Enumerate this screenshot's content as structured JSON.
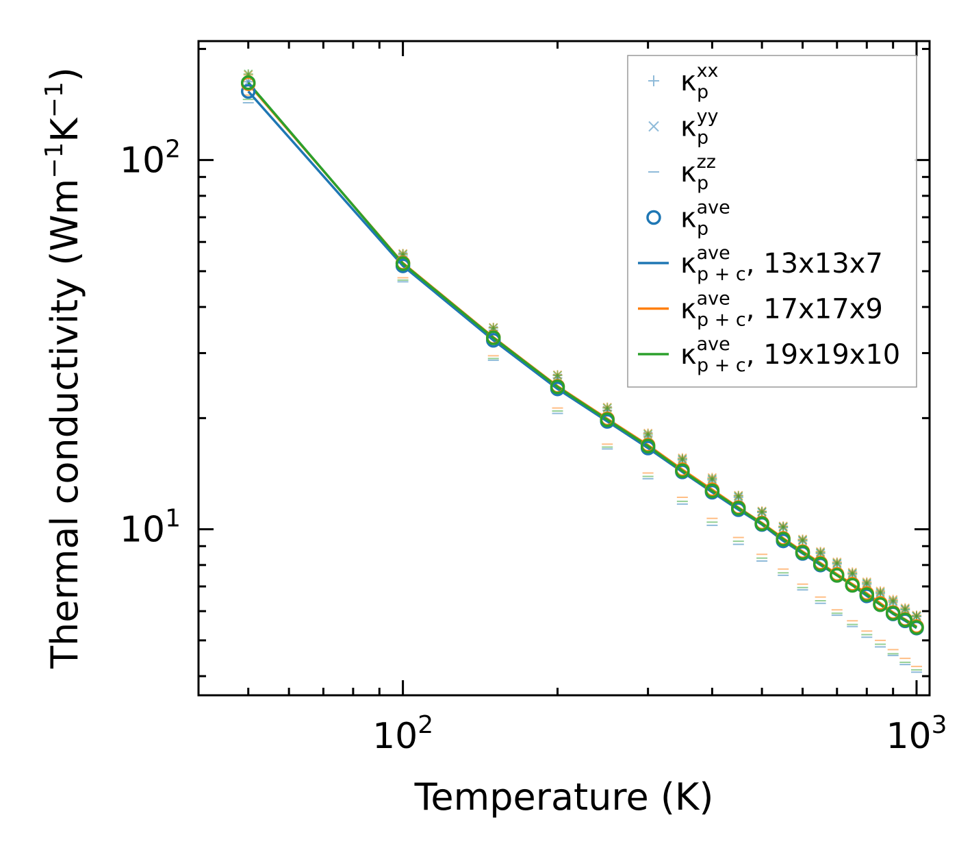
{
  "chart_data": {
    "type": "line",
    "xscale": "log",
    "yscale": "log",
    "xlabel": "Temperature (K)",
    "ylabel_main": "Thermal conductivity (Wm",
    "ylabel_sup1": "−1",
    "ylabel_mid": "K",
    "ylabel_sup2": "−1",
    "ylabel_end": ")",
    "xlim": [
      40,
      1060
    ],
    "ylim": [
      3.55,
      210
    ],
    "xticks": [
      {
        "base": "10",
        "exp": "2"
      },
      {
        "base": "10",
        "exp": "3"
      }
    ],
    "yticks": [
      {
        "base": "10",
        "exp": "1"
      },
      {
        "base": "10",
        "exp": "2"
      }
    ],
    "x": [
      50,
      100,
      150,
      200,
      250,
      300,
      350,
      400,
      450,
      500,
      550,
      600,
      650,
      700,
      750,
      800,
      850,
      900,
      950,
      1000
    ],
    "series": [
      {
        "name": "13x13x7",
        "color": "#1f77b4",
        "ave": [
          153.5,
          51.7,
          32.5,
          24.0,
          19.6,
          16.6,
          14.3,
          12.6,
          11.3,
          10.3,
          9.3,
          8.6,
          8.0,
          7.5,
          7.05,
          6.6,
          6.25,
          5.9,
          5.65,
          5.4
        ],
        "xx": [
          163,
          55.0,
          34.6,
          25.7,
          21.0,
          17.9,
          15.4,
          13.6,
          12.2,
          11.1,
          10.1,
          9.3,
          8.6,
          8.05,
          7.55,
          7.1,
          6.7,
          6.35,
          6.05,
          5.8
        ],
        "yy": [
          163,
          55.0,
          34.6,
          25.7,
          21.0,
          17.9,
          15.4,
          13.6,
          12.2,
          11.1,
          10.1,
          9.3,
          8.6,
          8.05,
          7.55,
          7.1,
          6.7,
          6.35,
          6.05,
          5.8
        ],
        "zz": [
          143,
          46.8,
          28.7,
          20.6,
          16.5,
          13.7,
          11.7,
          10.25,
          9.1,
          8.2,
          7.5,
          6.85,
          6.3,
          5.85,
          5.45,
          5.1,
          4.8,
          4.55,
          4.3,
          4.1
        ]
      },
      {
        "name": "17x17x9",
        "color": "#ff7f0e",
        "ave": [
          161,
          52.6,
          33.1,
          24.4,
          19.9,
          16.9,
          14.5,
          12.8,
          11.45,
          10.4,
          9.45,
          8.7,
          8.1,
          7.55,
          7.1,
          6.7,
          6.3,
          5.95,
          5.7,
          5.45
        ],
        "xx": [
          170,
          55.8,
          35.2,
          26.2,
          21.4,
          18.2,
          15.6,
          13.8,
          12.35,
          11.2,
          10.2,
          9.4,
          8.7,
          8.15,
          7.65,
          7.2,
          6.8,
          6.45,
          6.12,
          5.85
        ],
        "yy": [
          170,
          55.8,
          35.2,
          26.2,
          21.4,
          18.2,
          15.6,
          13.8,
          12.35,
          11.2,
          10.2,
          9.4,
          8.7,
          8.15,
          7.65,
          7.2,
          6.8,
          6.45,
          6.12,
          5.85
        ],
        "zz": [
          150,
          48.0,
          29.5,
          21.3,
          17.0,
          14.2,
          12.2,
          10.7,
          9.5,
          8.55,
          7.8,
          7.1,
          6.55,
          6.05,
          5.65,
          5.3,
          5.0,
          4.72,
          4.47,
          4.25
        ]
      },
      {
        "name": "19x19x10",
        "color": "#2ca02c",
        "ave": [
          162,
          52.4,
          33.0,
          24.3,
          19.8,
          16.8,
          14.4,
          12.7,
          11.4,
          10.35,
          9.4,
          8.65,
          8.05,
          7.5,
          7.05,
          6.65,
          6.25,
          5.92,
          5.68,
          5.42
        ],
        "xx": [
          171,
          55.6,
          35.1,
          26.1,
          21.3,
          18.1,
          15.5,
          13.7,
          12.3,
          11.15,
          10.15,
          9.35,
          8.65,
          8.1,
          7.6,
          7.15,
          6.75,
          6.4,
          6.08,
          5.82
        ],
        "yy": [
          171,
          55.6,
          35.1,
          26.1,
          21.3,
          18.1,
          15.5,
          13.7,
          12.3,
          11.15,
          10.15,
          9.35,
          8.65,
          8.1,
          7.6,
          7.15,
          6.75,
          6.4,
          6.08,
          5.82
        ],
        "zz": [
          146,
          47.3,
          29.0,
          20.9,
          16.7,
          13.9,
          11.9,
          10.45,
          9.28,
          8.35,
          7.62,
          6.95,
          6.4,
          5.92,
          5.52,
          5.18,
          4.88,
          4.6,
          4.36,
          4.16
        ]
      }
    ],
    "legend": {
      "position": "top-right",
      "entries": [
        {
          "symbol": "k",
          "sub": "p",
          "sup": "xx",
          "suffix": "",
          "marker": "plus",
          "color": "#1f77b4"
        },
        {
          "symbol": "k",
          "sub": "p",
          "sup": "yy",
          "suffix": "",
          "marker": "cross",
          "color": "#1f77b4"
        },
        {
          "symbol": "k",
          "sub": "p",
          "sup": "zz",
          "suffix": "",
          "marker": "dash",
          "color": "#1f77b4"
        },
        {
          "symbol": "k",
          "sub": "p",
          "sup": "ave",
          "suffix": "",
          "marker": "circle",
          "color": "#1f77b4"
        },
        {
          "symbol": "k",
          "sub": "p + c",
          "sup": "ave",
          "suffix": ", 13x13x7",
          "marker": "line",
          "color": "#1f77b4"
        },
        {
          "symbol": "k",
          "sub": "p + c",
          "sup": "ave",
          "suffix": ", 17x17x9",
          "marker": "line",
          "color": "#ff7f0e"
        },
        {
          "symbol": "k",
          "sub": "p + c",
          "sup": "ave",
          "suffix": ", 19x19x10",
          "marker": "line",
          "color": "#2ca02c"
        }
      ]
    }
  }
}
